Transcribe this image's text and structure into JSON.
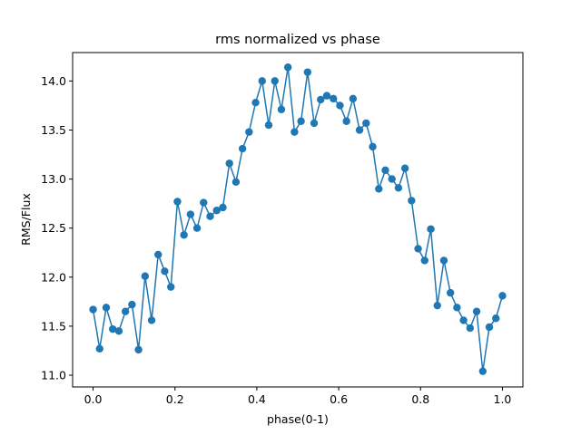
{
  "chart_data": {
    "type": "line",
    "title": "rms normalized vs phase",
    "x_label": "phase(0-1)",
    "y_label": "RMS/Flux",
    "x": [
      0,
      0.016,
      0.032,
      0.048,
      0.063,
      0.079,
      0.095,
      0.111,
      0.127,
      0.143,
      0.159,
      0.175,
      0.19,
      0.206,
      0.222,
      0.238,
      0.254,
      0.27,
      0.286,
      0.302,
      0.317,
      0.333,
      0.349,
      0.365,
      0.381,
      0.397,
      0.413,
      0.429,
      0.444,
      0.46,
      0.476,
      0.492,
      0.508,
      0.524,
      0.54,
      0.556,
      0.571,
      0.587,
      0.603,
      0.619,
      0.635,
      0.651,
      0.667,
      0.683,
      0.698,
      0.714,
      0.73,
      0.746,
      0.762,
      0.778,
      0.794,
      0.81,
      0.825,
      0.841,
      0.857,
      0.873,
      0.889,
      0.905,
      0.921,
      0.937,
      0.952,
      0.968,
      0.984,
      1.0
    ],
    "values": [
      11.67,
      11.27,
      11.69,
      11.47,
      11.45,
      11.65,
      11.72,
      11.26,
      12.01,
      11.56,
      12.23,
      12.06,
      11.9,
      12.77,
      12.43,
      12.64,
      12.5,
      12.76,
      12.62,
      12.68,
      12.71,
      13.16,
      12.97,
      13.31,
      13.48,
      13.78,
      14.0,
      13.55,
      14.0,
      13.71,
      14.14,
      13.48,
      13.59,
      14.09,
      13.57,
      13.81,
      13.85,
      13.82,
      13.75,
      13.59,
      13.82,
      13.5,
      13.57,
      13.33,
      12.9,
      13.09,
      13.0,
      12.91,
      13.11,
      12.78,
      12.29,
      12.17,
      12.49,
      11.71,
      12.17,
      11.84,
      11.69,
      11.56,
      11.48,
      11.65,
      11.04,
      11.49,
      11.58,
      11.81
    ],
    "color": "#1f77b4",
    "markers": true,
    "xlim": [
      -0.05,
      1.05
    ],
    "xticks": [
      {
        "value": 0,
        "label": "0.0"
      },
      {
        "value": 0.2,
        "label": "0.2"
      },
      {
        "value": 0.4,
        "label": "0.4"
      },
      {
        "value": 0.6,
        "label": "0.6"
      },
      {
        "value": 0.8,
        "label": "0.8"
      },
      {
        "value": 1,
        "label": "1.0"
      }
    ],
    "ylim": [
      10.88,
      14.29
    ],
    "yticks": [
      {
        "value": 11,
        "label": "11.0"
      },
      {
        "value": 11.5,
        "label": "11.5"
      },
      {
        "value": 12,
        "label": "12.0"
      },
      {
        "value": 12.5,
        "label": "12.5"
      },
      {
        "value": 13,
        "label": "13.0"
      },
      {
        "value": 13.5,
        "label": "13.5"
      },
      {
        "value": 14,
        "label": "14.0"
      }
    ],
    "grid": false
  }
}
